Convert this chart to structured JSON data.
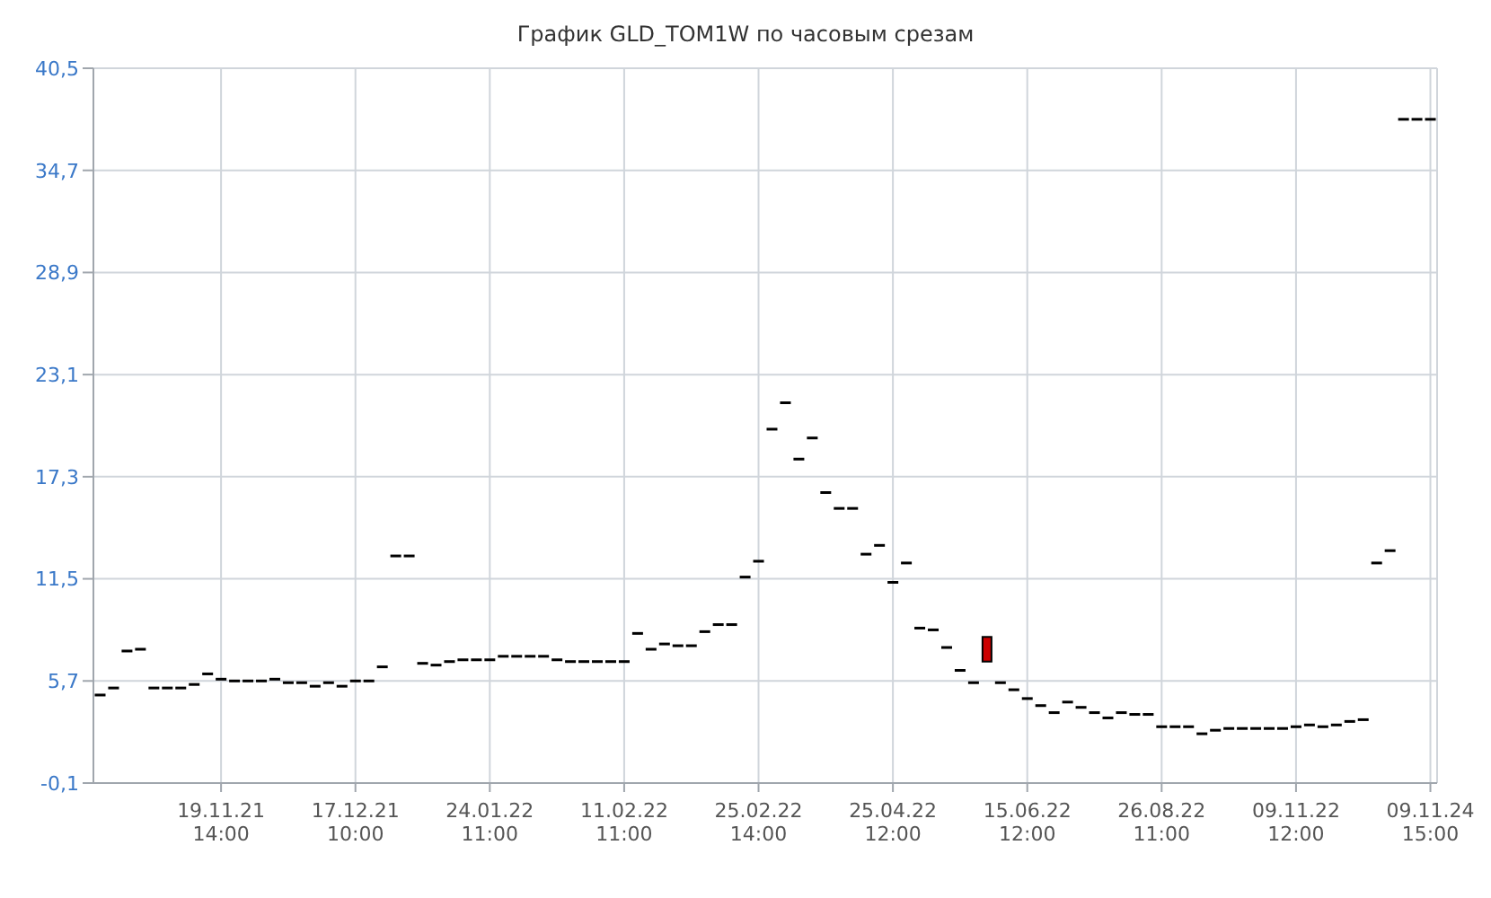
{
  "chart_data": {
    "type": "candlestick",
    "title": "График GLD_TOM1W по часовым срезам",
    "categories": [
      null,
      null,
      null,
      null,
      null,
      null,
      null,
      null,
      null,
      "19.11.21 14:00",
      null,
      null,
      null,
      null,
      null,
      null,
      null,
      null,
      null,
      "17.12.21 10:00",
      null,
      null,
      null,
      null,
      null,
      null,
      null,
      null,
      null,
      "24.01.22 11:00",
      null,
      null,
      null,
      null,
      null,
      null,
      null,
      null,
      null,
      "11.02.22 11:00",
      null,
      null,
      null,
      null,
      null,
      null,
      null,
      null,
      null,
      "25.02.22 14:00",
      null,
      null,
      null,
      null,
      null,
      null,
      null,
      null,
      null,
      "25.04.22 12:00",
      null,
      null,
      null,
      null,
      null,
      null,
      null,
      null,
      null,
      "15.06.22 12:00",
      null,
      null,
      null,
      null,
      null,
      null,
      null,
      null,
      null,
      "26.08.22 11:00",
      null,
      null,
      null,
      null,
      null,
      null,
      null,
      null,
      null,
      "09.11.22 12:00",
      null,
      null,
      null,
      null,
      null,
      null,
      null,
      null,
      null,
      "09.11.24 15:00"
    ],
    "ohlc": [
      [
        4.9,
        4.9,
        4.9,
        4.9
      ],
      [
        5.3,
        5.3,
        5.3,
        5.3
      ],
      [
        7.4,
        7.4,
        7.4,
        7.4
      ],
      [
        7.5,
        7.5,
        7.5,
        7.5
      ],
      [
        5.3,
        5.3,
        5.3,
        5.3
      ],
      [
        5.3,
        5.3,
        5.3,
        5.3
      ],
      [
        5.3,
        5.3,
        5.3,
        5.3
      ],
      [
        5.5,
        5.5,
        5.5,
        5.5
      ],
      [
        6.1,
        6.1,
        6.1,
        6.1
      ],
      [
        5.8,
        5.8,
        5.8,
        5.8
      ],
      [
        5.7,
        5.7,
        5.7,
        5.7
      ],
      [
        5.7,
        5.7,
        5.7,
        5.7
      ],
      [
        5.7,
        5.7,
        5.7,
        5.7
      ],
      [
        5.8,
        5.8,
        5.8,
        5.8
      ],
      [
        5.6,
        5.6,
        5.6,
        5.6
      ],
      [
        5.6,
        5.6,
        5.6,
        5.6
      ],
      [
        5.4,
        5.4,
        5.4,
        5.4
      ],
      [
        5.6,
        5.6,
        5.6,
        5.6
      ],
      [
        5.4,
        5.4,
        5.4,
        5.4
      ],
      [
        5.7,
        5.7,
        5.7,
        5.7
      ],
      [
        5.7,
        5.7,
        5.7,
        5.7
      ],
      [
        6.5,
        6.5,
        6.5,
        6.5
      ],
      [
        12.8,
        12.8,
        12.8,
        12.8
      ],
      [
        12.8,
        12.8,
        12.8,
        12.8
      ],
      [
        6.7,
        6.7,
        6.7,
        6.7
      ],
      [
        6.6,
        6.6,
        6.6,
        6.6
      ],
      [
        6.8,
        6.8,
        6.8,
        6.8
      ],
      [
        6.9,
        6.9,
        6.9,
        6.9
      ],
      [
        6.9,
        6.9,
        6.9,
        6.9
      ],
      [
        6.9,
        6.9,
        6.9,
        6.9
      ],
      [
        7.1,
        7.1,
        7.1,
        7.1
      ],
      [
        7.1,
        7.1,
        7.1,
        7.1
      ],
      [
        7.1,
        7.1,
        7.1,
        7.1
      ],
      [
        7.1,
        7.1,
        7.1,
        7.1
      ],
      [
        6.9,
        6.9,
        6.9,
        6.9
      ],
      [
        6.8,
        6.8,
        6.8,
        6.8
      ],
      [
        6.8,
        6.8,
        6.8,
        6.8
      ],
      [
        6.8,
        6.8,
        6.8,
        6.8
      ],
      [
        6.8,
        6.8,
        6.8,
        6.8
      ],
      [
        6.8,
        6.8,
        6.8,
        6.8
      ],
      [
        8.4,
        8.4,
        8.4,
        8.4
      ],
      [
        7.5,
        7.5,
        7.5,
        7.5
      ],
      [
        7.8,
        7.8,
        7.8,
        7.8
      ],
      [
        7.7,
        7.7,
        7.7,
        7.7
      ],
      [
        7.7,
        7.7,
        7.7,
        7.7
      ],
      [
        8.5,
        8.5,
        8.5,
        8.5
      ],
      [
        8.9,
        8.9,
        8.9,
        8.9
      ],
      [
        8.9,
        8.9,
        8.9,
        8.9
      ],
      [
        11.6,
        11.6,
        11.6,
        11.6
      ],
      [
        12.5,
        12.5,
        12.5,
        12.5
      ],
      [
        20.0,
        20.0,
        20.0,
        20.0
      ],
      [
        21.5,
        21.5,
        21.5,
        21.5
      ],
      [
        18.3,
        18.3,
        18.3,
        18.3
      ],
      [
        19.5,
        19.5,
        19.5,
        19.5
      ],
      [
        16.4,
        16.4,
        16.4,
        16.4
      ],
      [
        15.5,
        15.5,
        15.5,
        15.5
      ],
      [
        15.5,
        15.5,
        15.5,
        15.5
      ],
      [
        12.9,
        12.9,
        12.9,
        12.9
      ],
      [
        13.4,
        13.4,
        13.4,
        13.4
      ],
      [
        11.3,
        11.3,
        11.3,
        11.3
      ],
      [
        12.4,
        12.4,
        12.4,
        12.4
      ],
      [
        8.7,
        8.7,
        8.7,
        8.7
      ],
      [
        8.6,
        8.6,
        8.6,
        8.6
      ],
      [
        7.6,
        7.6,
        7.6,
        7.6
      ],
      [
        6.3,
        6.3,
        6.3,
        6.3
      ],
      [
        5.6,
        5.6,
        5.6,
        5.6
      ],
      [
        8.2,
        8.2,
        6.8,
        6.8
      ],
      [
        5.6,
        5.6,
        5.6,
        5.6
      ],
      [
        5.2,
        5.2,
        5.2,
        5.2
      ],
      [
        4.7,
        4.7,
        4.7,
        4.7
      ],
      [
        4.3,
        4.3,
        4.3,
        4.3
      ],
      [
        3.9,
        3.9,
        3.9,
        3.9
      ],
      [
        4.5,
        4.5,
        4.5,
        4.5
      ],
      [
        4.2,
        4.2,
        4.2,
        4.2
      ],
      [
        3.9,
        3.9,
        3.9,
        3.9
      ],
      [
        3.6,
        3.6,
        3.6,
        3.6
      ],
      [
        3.9,
        3.9,
        3.9,
        3.9
      ],
      [
        3.8,
        3.8,
        3.8,
        3.8
      ],
      [
        3.8,
        3.8,
        3.8,
        3.8
      ],
      [
        3.1,
        3.1,
        3.1,
        3.1
      ],
      [
        3.1,
        3.1,
        3.1,
        3.1
      ],
      [
        3.1,
        3.1,
        3.1,
        3.1
      ],
      [
        2.7,
        2.7,
        2.7,
        2.7
      ],
      [
        2.9,
        2.9,
        2.9,
        2.9
      ],
      [
        3.0,
        3.0,
        3.0,
        3.0
      ],
      [
        3.0,
        3.0,
        3.0,
        3.0
      ],
      [
        3.0,
        3.0,
        3.0,
        3.0
      ],
      [
        3.0,
        3.0,
        3.0,
        3.0
      ],
      [
        3.0,
        3.0,
        3.0,
        3.0
      ],
      [
        3.1,
        3.1,
        3.1,
        3.1
      ],
      [
        3.2,
        3.2,
        3.2,
        3.2
      ],
      [
        3.1,
        3.1,
        3.1,
        3.1
      ],
      [
        3.2,
        3.2,
        3.2,
        3.2
      ],
      [
        3.4,
        3.4,
        3.4,
        3.4
      ],
      [
        3.5,
        3.5,
        3.5,
        3.5
      ],
      [
        12.4,
        12.4,
        12.4,
        12.4
      ],
      [
        13.1,
        13.1,
        13.1,
        13.1
      ],
      [
        37.6,
        37.6,
        37.6,
        37.6
      ],
      [
        37.6,
        37.6,
        37.6,
        37.6
      ],
      [
        37.6,
        37.6,
        37.6,
        37.6
      ]
    ],
    "colors": [
      "#000000",
      "#000000",
      "#000000",
      "#000000",
      "#000000",
      "#000000",
      "#000000",
      "#000000",
      "#000000",
      "#000000",
      "#000000",
      "#000000",
      "#000000",
      "#000000",
      "#000000",
      "#000000",
      "#000000",
      "#000000",
      "#000000",
      "#000000",
      "#000000",
      "#000000",
      "#000000",
      "#000000",
      "#000000",
      "#000000",
      "#000000",
      "#000000",
      "#000000",
      "#000000",
      "#000000",
      "#000000",
      "#000000",
      "#000000",
      "#000000",
      "#000000",
      "#000000",
      "#000000",
      "#000000",
      "#000000",
      "#000000",
      "#000000",
      "#000000",
      "#000000",
      "#000000",
      "#000000",
      "#000000",
      "#000000",
      "#000000",
      "#000000",
      "#000000",
      "#000000",
      "#000000",
      "#000000",
      "#000000",
      "#000000",
      "#000000",
      "#000000",
      "#000000",
      "#000000",
      "#000000",
      "#000000",
      "#000000",
      "#000000",
      "#000000",
      "#000000",
      "#cc0000",
      "#000000",
      "#000000",
      "#000000",
      "#000000",
      "#000000",
      "#000000",
      "#000000",
      "#000000",
      "#000000",
      "#000000",
      "#000000",
      "#000000",
      "#000000",
      "#000000",
      "#000000",
      "#000000",
      "#000000",
      "#000000",
      "#000000",
      "#000000",
      "#000000",
      "#000000",
      "#000000",
      "#000000",
      "#000000",
      "#000000",
      "#000000",
      "#000000",
      "#000000",
      "#000000",
      "#000000",
      "#000000",
      "#000000"
    ],
    "ylim": [
      -0.1,
      40.5
    ],
    "yticks": [
      {
        "value": -0.1,
        "label": "-0,1"
      },
      {
        "value": 5.7,
        "label": "5,7"
      },
      {
        "value": 11.5,
        "label": "11,5"
      },
      {
        "value": 17.3,
        "label": "17,3"
      },
      {
        "value": 23.1,
        "label": "23,1"
      },
      {
        "value": 28.9,
        "label": "28,9"
      },
      {
        "value": 34.7,
        "label": "34,7"
      },
      {
        "value": 40.5,
        "label": "40,5"
      }
    ],
    "grid": true
  }
}
